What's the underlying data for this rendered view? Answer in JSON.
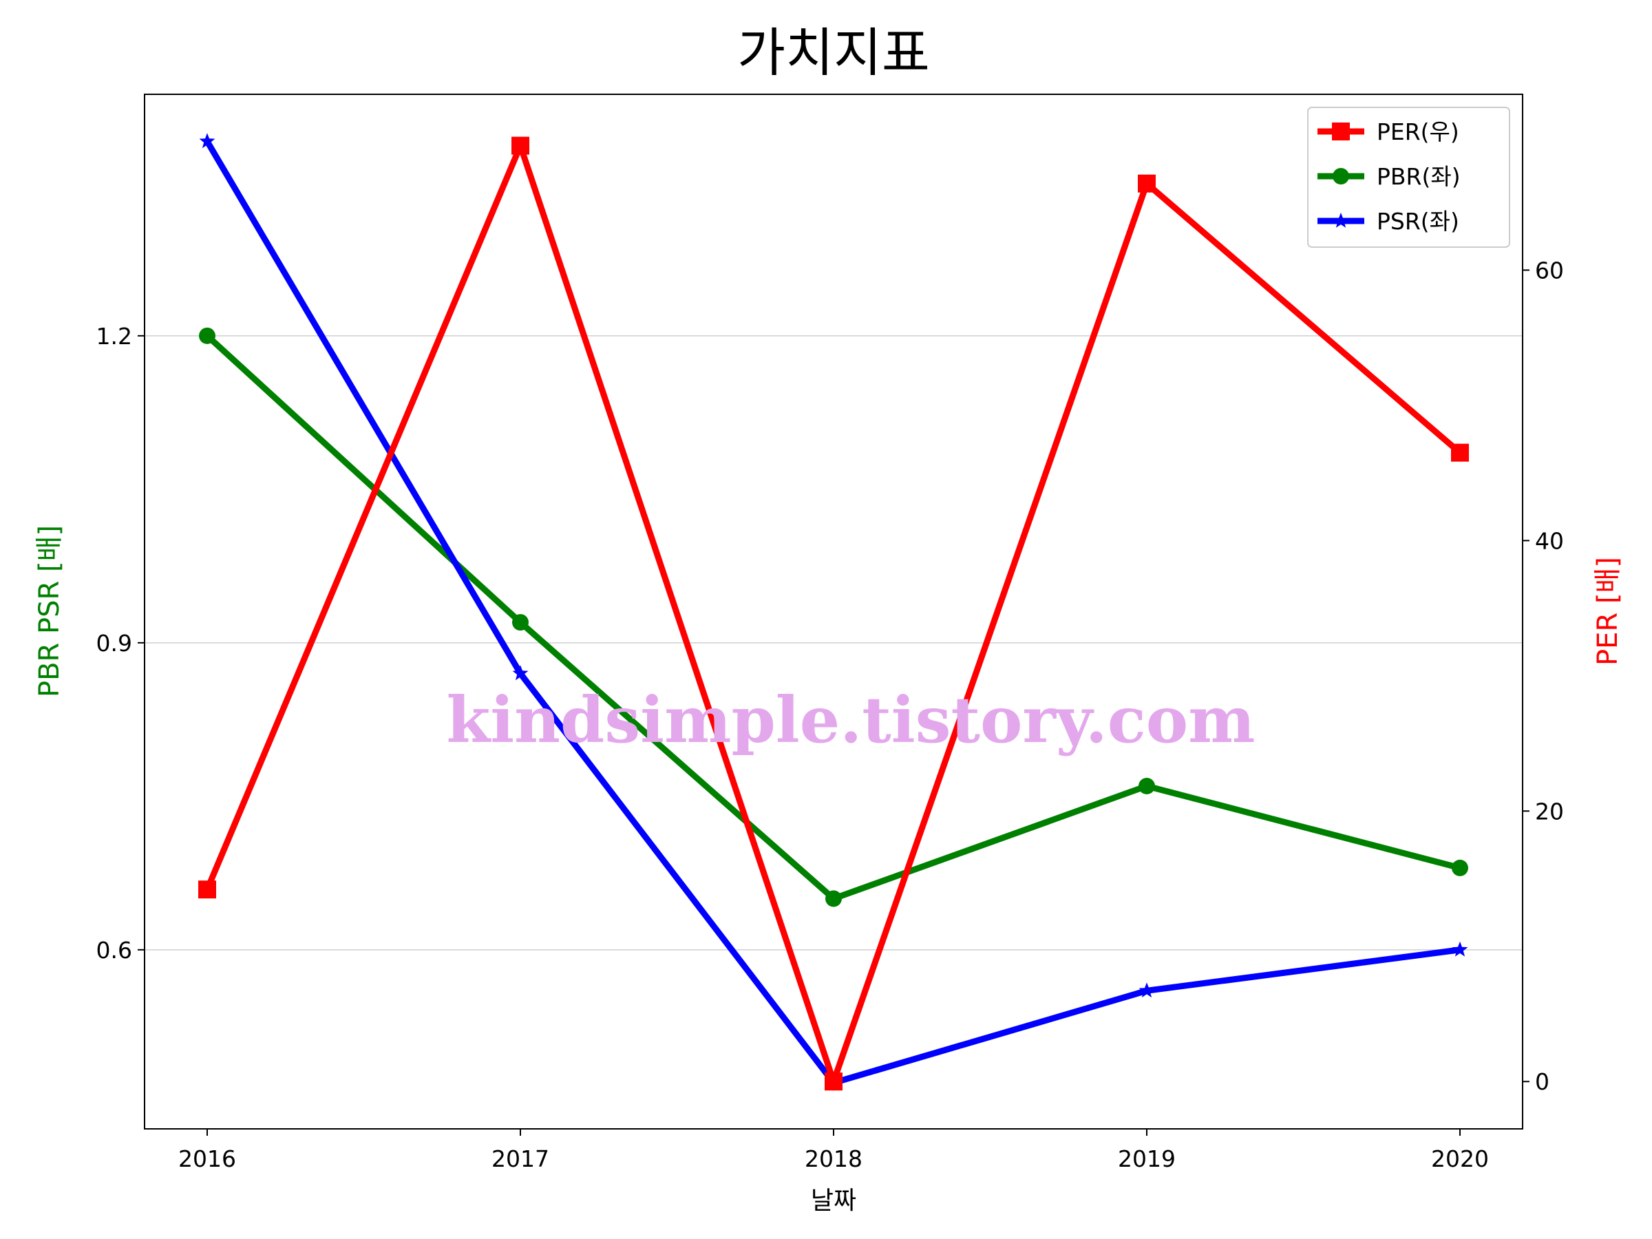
{
  "chart_data": {
    "type": "line",
    "title": "가치지표",
    "xlabel": "날짜",
    "ylabel_left": "PBR PSR [배]",
    "ylabel_right": "PER [배]",
    "ylabel_left_color": "#008000",
    "ylabel_right_color": "#ff0000",
    "categories": [
      "2016",
      "2017",
      "2018",
      "2019",
      "2020"
    ],
    "ylim_left": [
      0.425,
      1.436
    ],
    "ylim_right": [
      -3.5,
      73
    ],
    "yticks_left": [
      0.6,
      0.9,
      1.2
    ],
    "yticks_left_labels": [
      "0.6",
      "0.9",
      "1.2"
    ],
    "yticks_right": [
      0,
      20,
      40,
      60
    ],
    "yticks_right_labels": [
      "0",
      "20",
      "40",
      "60"
    ],
    "grid": "horizontal (left axis)",
    "legend_position": "top-right",
    "series": [
      {
        "name": "PER(우)",
        "axis": "right",
        "color": "#ff0000",
        "marker": "square",
        "values": [
          14.2,
          69.2,
          0.0,
          66.4,
          46.5
        ]
      },
      {
        "name": "PBR(좌)",
        "axis": "left",
        "color": "#008000",
        "marker": "circle",
        "values": [
          1.2,
          0.92,
          0.65,
          0.76,
          0.68
        ]
      },
      {
        "name": "PSR(좌)",
        "axis": "left",
        "color": "#0000ff",
        "marker": "star",
        "values": [
          1.39,
          0.87,
          0.47,
          0.56,
          0.6
        ]
      }
    ],
    "watermark": "kindsimple.tistory.com"
  }
}
